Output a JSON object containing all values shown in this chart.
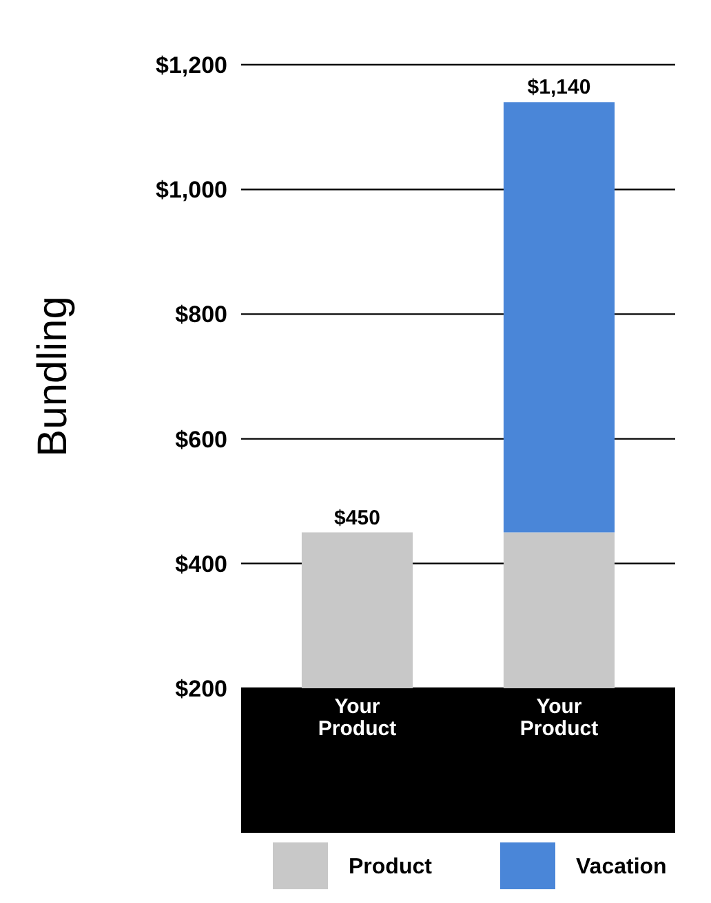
{
  "chart_data": {
    "type": "bar",
    "ylabel": "Bundling",
    "categories": [
      "Your Product",
      "Your Product"
    ],
    "stacked": true,
    "series": [
      {
        "name": "Product",
        "color": "#c8c8c8",
        "values": [
          450,
          450
        ]
      },
      {
        "name": "Vacation",
        "color": "#4a86d8",
        "values": [
          null,
          690
        ]
      }
    ],
    "totals": [
      "$450",
      "$1,140"
    ],
    "ylim": [
      200,
      1200
    ],
    "yticks": [
      {
        "value": 200,
        "label": "$200"
      },
      {
        "value": 400,
        "label": "$400"
      },
      {
        "value": 600,
        "label": "$600"
      },
      {
        "value": 800,
        "label": "$800"
      },
      {
        "value": 1000,
        "label": "$1,000"
      },
      {
        "value": 1200,
        "label": "$1,200"
      }
    ],
    "grid": "y",
    "legend": "bottom"
  }
}
